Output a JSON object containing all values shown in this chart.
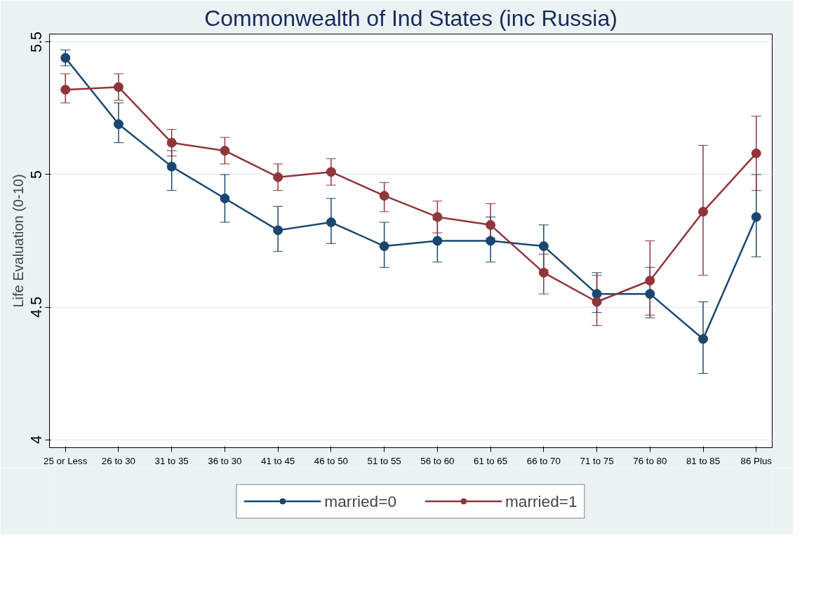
{
  "chart_data": {
    "type": "line",
    "title": "Commonwealth of Ind States (inc Russia)",
    "ylabel": "Life Evaluation (0-10)",
    "categories": [
      "25 or Less",
      "26 to 30",
      "31 to 35",
      "36 to 30",
      "41 to 45",
      "46 to 50",
      "51 to 55",
      "56 to 60",
      "61 to 65",
      "66 to 70",
      "71 to 75",
      "76 to 80",
      "81 to 85",
      "86 Plus"
    ],
    "ylim": [
      3.97,
      5.53
    ],
    "yticks": [
      4,
      4.5,
      5,
      5.5
    ],
    "grid": "y",
    "legend": "bottom",
    "marker": "circle",
    "line_style": "solid",
    "series": [
      {
        "name": "married=0",
        "color": "#1a476f",
        "values": [
          5.44,
          5.19,
          5.03,
          4.91,
          4.79,
          4.82,
          4.73,
          4.75,
          4.75,
          4.73,
          4.55,
          4.55,
          4.38,
          4.84
        ],
        "errors": [
          [
            5.41,
            5.47
          ],
          [
            5.12,
            5.27
          ],
          [
            4.94,
            5.09
          ],
          [
            4.82,
            5.0
          ],
          [
            4.71,
            4.88
          ],
          [
            4.74,
            4.91
          ],
          [
            4.65,
            4.82
          ],
          [
            4.67,
            4.83
          ],
          [
            4.67,
            4.84
          ],
          [
            4.64,
            4.81
          ],
          [
            4.48,
            4.63
          ],
          [
            4.46,
            4.65
          ],
          [
            4.25,
            4.52
          ],
          [
            4.69,
            5.0
          ]
        ]
      },
      {
        "name": "married=1",
        "color": "#90353b",
        "values": [
          5.32,
          5.33,
          5.12,
          5.09,
          4.99,
          5.01,
          4.92,
          4.84,
          4.81,
          4.63,
          4.52,
          4.6,
          4.86,
          5.08
        ],
        "errors": [
          [
            5.27,
            5.38
          ],
          [
            5.28,
            5.38
          ],
          [
            5.07,
            5.17
          ],
          [
            5.04,
            5.14
          ],
          [
            4.94,
            5.04
          ],
          [
            4.96,
            5.06
          ],
          [
            4.86,
            4.97
          ],
          [
            4.78,
            4.9
          ],
          [
            4.76,
            4.89
          ],
          [
            4.55,
            4.7
          ],
          [
            4.43,
            4.62
          ],
          [
            4.47,
            4.75
          ],
          [
            4.62,
            5.11
          ],
          [
            4.94,
            5.22
          ]
        ]
      }
    ]
  }
}
